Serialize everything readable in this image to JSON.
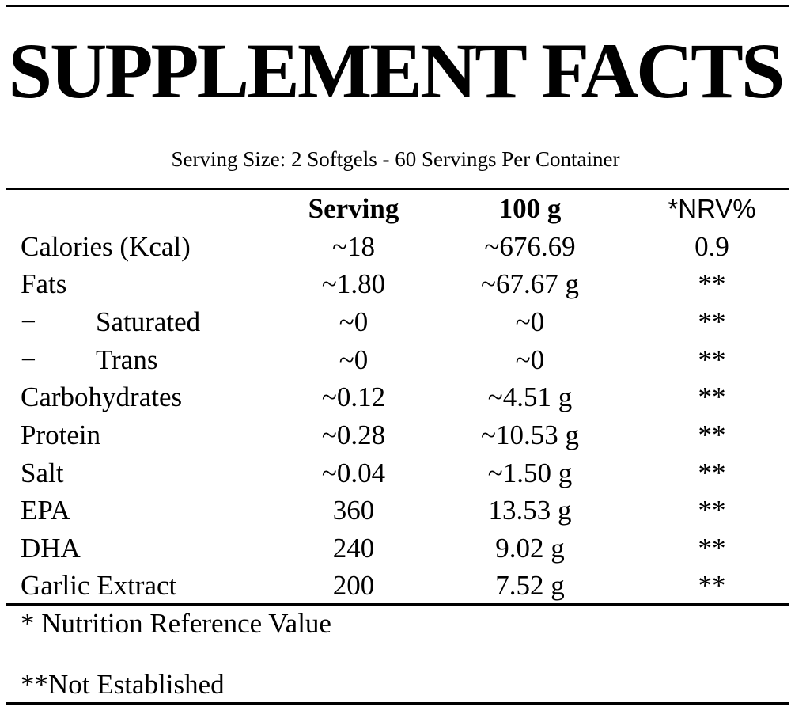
{
  "title": "SUPPLEMENT FACTS",
  "serving_size": "Serving Size: 2 Softgels - 60 Servings Per Container",
  "columns": {
    "serving": "Serving",
    "per100g": "100 g",
    "nrv": "*NRV%"
  },
  "rows": [
    {
      "name": "Calories (Kcal)",
      "serving": "~18",
      "per100g": "~676.69",
      "nrv": "0.9"
    },
    {
      "name": "Fats",
      "serving": "~1.80",
      "per100g": "~67.67 g",
      "nrv": "**"
    },
    {
      "dash": "−",
      "name": "Saturated",
      "serving": "~0",
      "per100g": "~0",
      "nrv": "**"
    },
    {
      "dash": "−",
      "name": "Trans",
      "serving": "~0",
      "per100g": "~0",
      "nrv": "**"
    },
    {
      "name": "Carbohydrates",
      "serving": "~0.12",
      "per100g": "~4.51 g",
      "nrv": "**"
    },
    {
      "name": "Protein",
      "serving": "~0.28",
      "per100g": "~10.53 g",
      "nrv": "**"
    },
    {
      "name": "Salt",
      "serving": "~0.04",
      "per100g": "~1.50 g",
      "nrv": "**"
    },
    {
      "name": "EPA",
      "serving": "360",
      "per100g": "13.53 g",
      "nrv": "**"
    },
    {
      "name": "DHA",
      "serving": "240",
      "per100g": "9.02 g",
      "nrv": "**"
    },
    {
      "name": "Garlic Extract",
      "serving": "200",
      "per100g": "7.52 g",
      "nrv": "**"
    }
  ],
  "footnotes": {
    "nrv": "* Nutrition Reference Value",
    "not_established": "**Not Established"
  }
}
